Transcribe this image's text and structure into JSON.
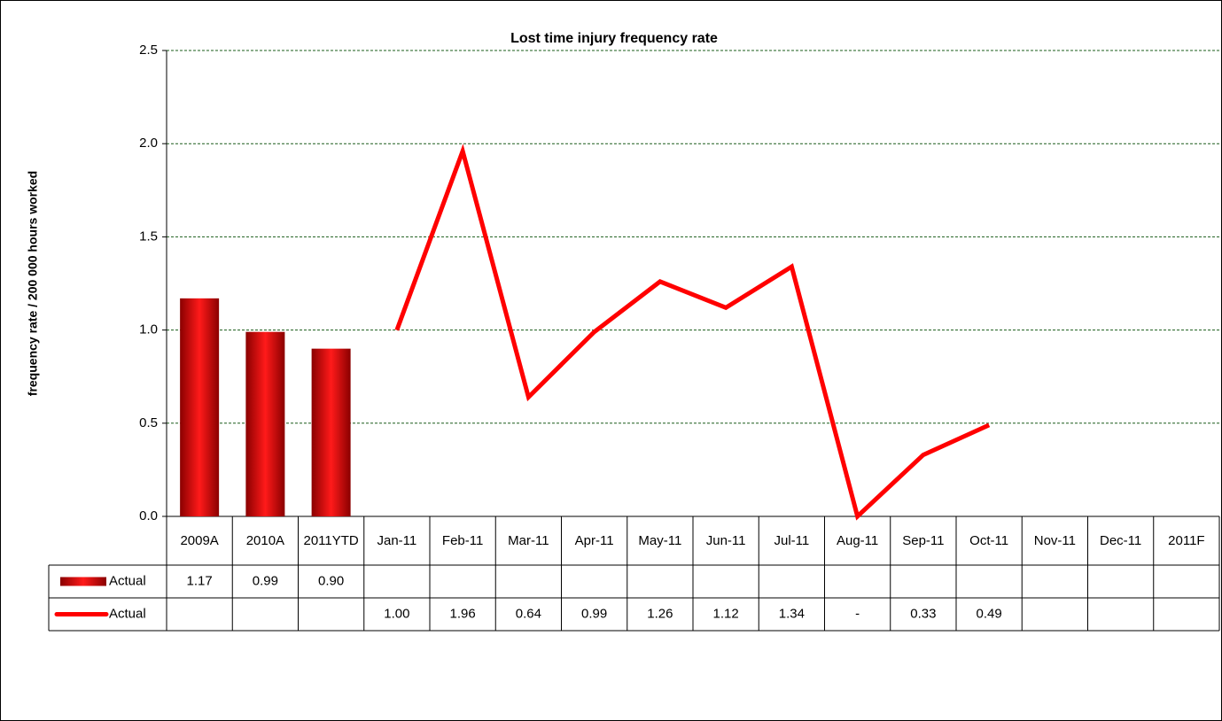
{
  "chart_data": {
    "type": "bar-line",
    "title": "Lost time injury frequency rate",
    "y_label": "frequency rate / 200 000 hours worked",
    "categories": [
      "2009A",
      "2010A",
      "2011YTD",
      "Jan-11",
      "Feb-11",
      "Mar-11",
      "Apr-11",
      "May-11",
      "Jun-11",
      "Jul-11",
      "Aug-11",
      "Sep-11",
      "Oct-11",
      "Nov-11",
      "Dec-11",
      "2011F"
    ],
    "series": [
      {
        "name": "Actual",
        "type": "bar",
        "color": "#e00000",
        "values": [
          1.17,
          0.99,
          0.9,
          null,
          null,
          null,
          null,
          null,
          null,
          null,
          null,
          null,
          null,
          null,
          null,
          null
        ],
        "value_labels": [
          "1.17",
          "0.99",
          "0.90",
          null,
          null,
          null,
          null,
          null,
          null,
          null,
          null,
          null,
          null,
          null,
          null,
          null
        ]
      },
      {
        "name": "Actual",
        "type": "line",
        "color": "#ff0000",
        "values": [
          null,
          null,
          null,
          1.0,
          1.96,
          0.64,
          0.99,
          1.26,
          1.12,
          1.34,
          0,
          0.33,
          0.49,
          null,
          null,
          null
        ],
        "value_labels": [
          null,
          null,
          null,
          "1.00",
          "1.96",
          "0.64",
          "0.99",
          "1.26",
          "1.12",
          "1.34",
          "-",
          "0.33",
          "0.49",
          null,
          null,
          null
        ]
      }
    ],
    "ylim": [
      0,
      2.5
    ],
    "yticks": [
      {
        "value": 0,
        "label": "0.0"
      },
      0.5,
      {
        "value": 1,
        "label": "1.0"
      },
      1.5,
      {
        "value": 2,
        "label": "2.0"
      },
      2.5
    ],
    "grid": true
  }
}
